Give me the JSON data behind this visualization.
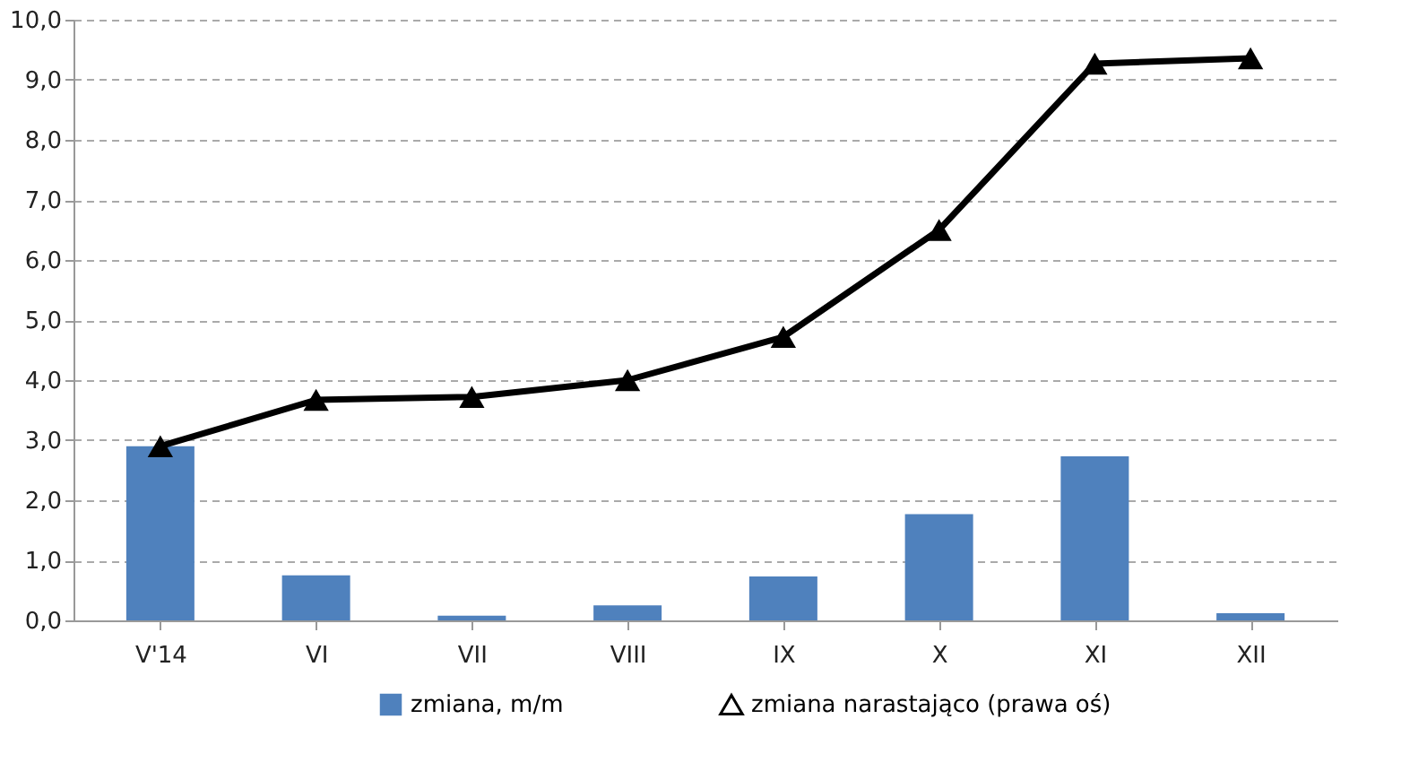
{
  "chart_data": {
    "type": "bar",
    "categories": [
      "V'14",
      "VI",
      "VII",
      "VIII",
      "IX",
      "X",
      "XI",
      "XII"
    ],
    "series": [
      {
        "name": "zmiana, m/m",
        "type": "bar",
        "color": "#4f81bd",
        "values": [
          2.9,
          0.75,
          0.08,
          0.25,
          0.73,
          1.77,
          2.73,
          0.12
        ]
      },
      {
        "name": "zmiana narastająco (prawa oś)",
        "type": "line",
        "color": "#000000",
        "marker": "triangle",
        "values": [
          2.9,
          3.67,
          3.72,
          4.0,
          4.72,
          6.5,
          9.27,
          9.36
        ]
      }
    ],
    "ylim": [
      0,
      10
    ],
    "yticks": [
      {
        "value": 0,
        "label": "0,0"
      },
      {
        "value": 1,
        "label": "1,0"
      },
      {
        "value": 2,
        "label": "2,0"
      },
      {
        "value": 3,
        "label": "3,0"
      },
      {
        "value": 4,
        "label": "4,0"
      },
      {
        "value": 5,
        "label": "5,0"
      },
      {
        "value": 6,
        "label": "6,0"
      },
      {
        "value": 7,
        "label": "7,0"
      },
      {
        "value": 8,
        "label": "8,0"
      },
      {
        "value": 9,
        "label": "9,0"
      },
      {
        "value": 10,
        "label": "10,0"
      }
    ],
    "grid": "y",
    "legend": "bottom"
  }
}
